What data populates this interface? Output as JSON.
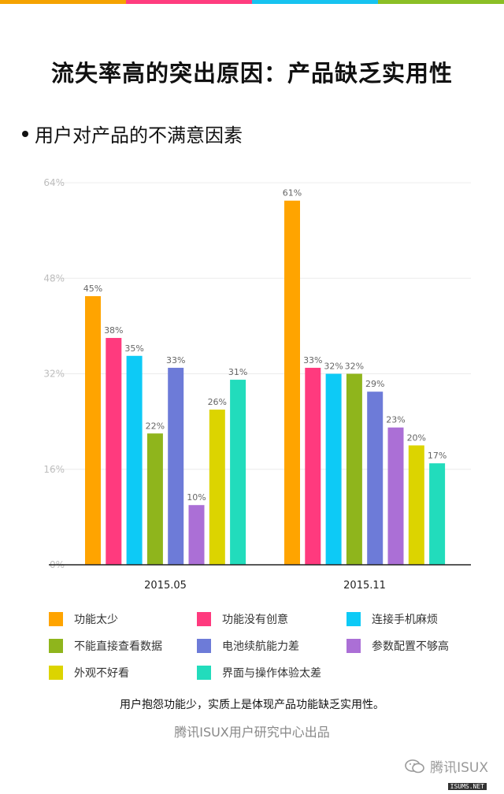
{
  "top_bar_colors": [
    "#f5a300",
    "#ff3d7f",
    "#16c3f0",
    "#8bbf26"
  ],
  "title": "流失率高的突出原因：产品缺乏实用性",
  "subtitle": "用户对产品的不满意因素",
  "chart_data": {
    "type": "bar",
    "title": "",
    "xlabel": "",
    "ylabel": "",
    "ylim": [
      0,
      64
    ],
    "yticks": [
      "64%",
      "48%",
      "32%",
      "16%",
      "0%"
    ],
    "grid": true,
    "categories": [
      "2015.05",
      "2015.11"
    ],
    "series": [
      {
        "name": "功能太少",
        "color": "#ffa400",
        "values": [
          45,
          61
        ]
      },
      {
        "name": "功能没有创意",
        "color": "#ff3a7e",
        "values": [
          38,
          33
        ]
      },
      {
        "name": "连接手机麻烦",
        "color": "#0dcaf6",
        "values": [
          35,
          32
        ]
      },
      {
        "name": "不能直接查看数据",
        "color": "#8fb51c",
        "values": [
          22,
          32
        ]
      },
      {
        "name": "电池续航能力差",
        "color": "#6d7bd8",
        "values": [
          33,
          29
        ]
      },
      {
        "name": "参数配置不够高",
        "color": "#ab6fd6",
        "values": [
          10,
          23
        ]
      },
      {
        "name": "外观不好看",
        "color": "#dcd400",
        "values": [
          26,
          20
        ]
      },
      {
        "name": "界面与操作体验太差",
        "color": "#22dcbc",
        "values": [
          31,
          17
        ]
      }
    ],
    "value_labels": [
      [
        "45%",
        "38%",
        "35%",
        "22%",
        "33%",
        "10%",
        "26%",
        "31%"
      ],
      [
        "61%",
        "33%",
        "32%",
        "32%",
        "29%",
        "23%",
        "20%",
        "17%"
      ]
    ],
    "legend_position": "bottom"
  },
  "note": "用户抱怨功能少，实质上是体现产品功能缺乏实用性。",
  "source": "腾讯ISUX用户研究中心出品",
  "watermark": "腾讯ISUX",
  "watermark_small": "ISUMS.NET"
}
